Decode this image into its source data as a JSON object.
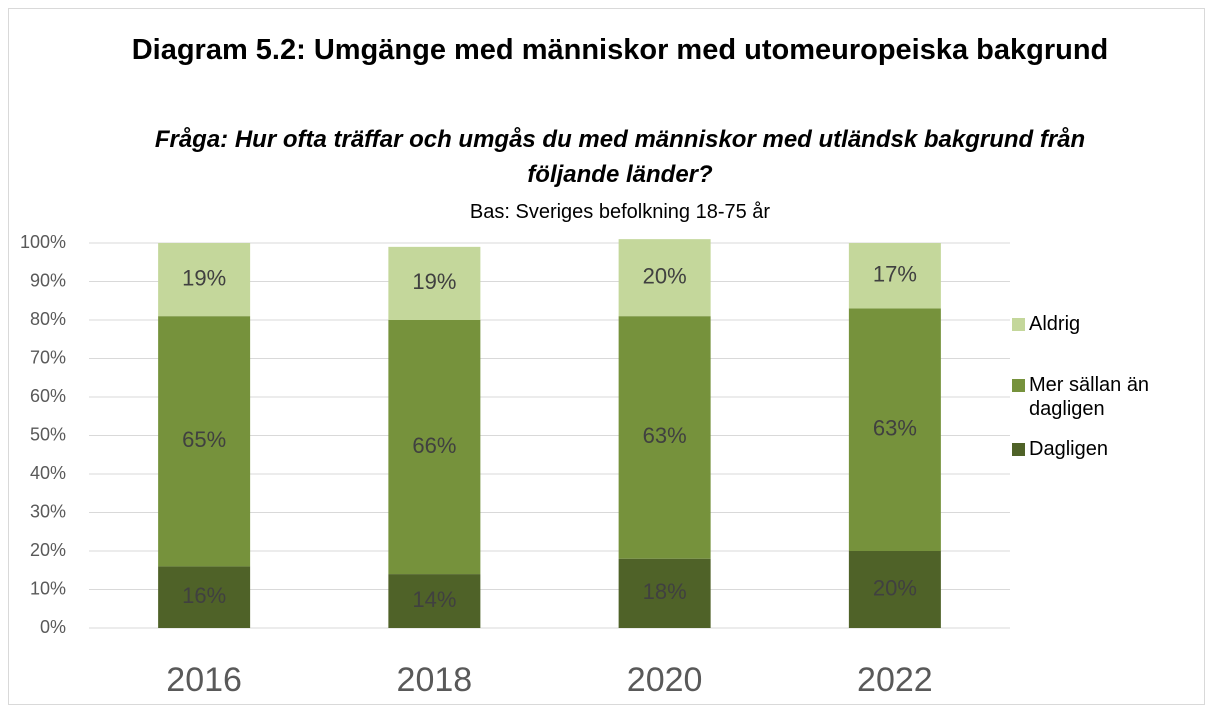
{
  "chart_data": {
    "type": "stacked_bar",
    "title": "Diagram 5.2: Umgänge med människor med utomeuropeiska bakgrund",
    "subtitle": "Fråga: Hur ofta träffar och umgås du med människor med utländsk bakgrund från följande länder?",
    "note": "Bas: Sveriges befolkning 18-75 år",
    "categories": [
      "2016",
      "2018",
      "2020",
      "2022"
    ],
    "series": [
      {
        "name": "Dagligen",
        "color": "#4f6228",
        "values": [
          16,
          14,
          18,
          20
        ],
        "value_labels": [
          "16%",
          "14%",
          "18%",
          "20%"
        ]
      },
      {
        "name": "Mer sällan än dagligen",
        "color": "#76923c",
        "values": [
          65,
          66,
          63,
          63
        ],
        "value_labels": [
          "65%",
          "66%",
          "63%",
          "63%"
        ]
      },
      {
        "name": "Aldrig",
        "color": "#c4d79b",
        "values": [
          19,
          19,
          20,
          17
        ],
        "value_labels": [
          "19%",
          "19%",
          "20%",
          "17%"
        ]
      }
    ],
    "ylim": [
      0,
      100
    ],
    "yticks": [
      {
        "value": 0,
        "label": "0%"
      },
      {
        "value": 10,
        "label": "10%"
      },
      {
        "value": 20,
        "label": "20%"
      },
      {
        "value": 30,
        "label": "30%"
      },
      {
        "value": 40,
        "label": "40%"
      },
      {
        "value": 50,
        "label": "50%"
      },
      {
        "value": 60,
        "label": "60%"
      },
      {
        "value": 70,
        "label": "70%"
      },
      {
        "value": 80,
        "label": "80%"
      },
      {
        "value": 90,
        "label": "90%"
      },
      {
        "value": 100,
        "label": "100%"
      }
    ],
    "grid": true,
    "legend": "right"
  }
}
